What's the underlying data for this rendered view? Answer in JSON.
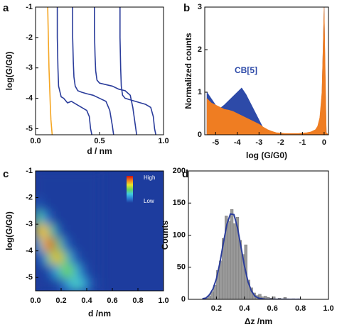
{
  "chart_data": [
    {
      "type": "line",
      "panel_label": "a",
      "xlabel": "d / nm",
      "ylabel": "log(G/G0)",
      "xlim": [
        0,
        1
      ],
      "ylim": [
        -5.2,
        -1
      ],
      "xticks": [
        {
          "value": 0,
          "label": "0.0"
        },
        0.5,
        {
          "value": 1,
          "label": "1.0"
        }
      ],
      "yticks": [
        -1,
        -2,
        -3,
        -4,
        -5
      ],
      "series": [
        {
          "color": "#f5a623",
          "x": [
            0.095,
            0.1,
            0.105,
            0.11,
            0.115,
            0.12,
            0.13
          ],
          "values": [
            -1,
            -2,
            -3,
            -3.6,
            -4.2,
            -4.7,
            -5.2
          ]
        },
        {
          "color": "#2b3d9b",
          "x": [
            0.17,
            0.17,
            0.175,
            0.18,
            0.2,
            0.22,
            0.25,
            0.28,
            0.32,
            0.36,
            0.4,
            0.42,
            0.43,
            0.44
          ],
          "values": [
            -1,
            -2,
            -3,
            -3.6,
            -3.95,
            -4.0,
            -4.15,
            -4.1,
            -4.2,
            -4.3,
            -4.4,
            -4.6,
            -5.0,
            -5.2
          ]
        },
        {
          "color": "#2b3d9b",
          "x": [
            0.29,
            0.29,
            0.295,
            0.3,
            0.31,
            0.33,
            0.36,
            0.4,
            0.45,
            0.5,
            0.55,
            0.58,
            0.6,
            0.61
          ],
          "values": [
            -1,
            -2,
            -2.8,
            -3.3,
            -3.6,
            -3.75,
            -3.8,
            -3.85,
            -3.9,
            -4.0,
            -4.1,
            -4.4,
            -4.9,
            -5.2
          ]
        },
        {
          "color": "#2b3d9b",
          "x": [
            0.46,
            0.46,
            0.465,
            0.47,
            0.48,
            0.5,
            0.55,
            0.6,
            0.65,
            0.7,
            0.74,
            0.76,
            0.78,
            0.79
          ],
          "values": [
            -1,
            -1.8,
            -2.6,
            -3.1,
            -3.4,
            -3.5,
            -3.55,
            -3.6,
            -3.7,
            -3.75,
            -3.9,
            -4.3,
            -4.9,
            -5.2
          ]
        },
        {
          "color": "#2b3d9b",
          "x": [
            0.66,
            0.66,
            0.665,
            0.67,
            0.68,
            0.7,
            0.74,
            0.78,
            0.82,
            0.86,
            0.9,
            0.92,
            0.93,
            0.94
          ],
          "values": [
            -1,
            -2,
            -3,
            -3.6,
            -3.9,
            -4.0,
            -4.05,
            -4.1,
            -4.15,
            -4.2,
            -4.3,
            -4.6,
            -5.0,
            -5.2
          ]
        }
      ]
    },
    {
      "type": "area",
      "panel_label": "b",
      "xlabel": "log (G/G0)",
      "ylabel": "Normalized counts",
      "annotation": "CB[5]",
      "xlim": [
        -5.5,
        0.2
      ],
      "ylim": [
        0,
        3
      ],
      "xticks": [
        -5,
        -4,
        -3,
        -2,
        -1,
        0
      ],
      "yticks": [
        0,
        1,
        2,
        3
      ],
      "x": [
        -5.4,
        -5.2,
        -5.0,
        -4.8,
        -4.6,
        -4.4,
        -4.2,
        -4.0,
        -3.8,
        -3.6,
        -3.4,
        -3.2,
        -3.0,
        -2.8,
        -2.6,
        -2.4,
        -2.2,
        -2.0,
        -1.8,
        -1.6,
        -1.4,
        -1.2,
        -1.0,
        -0.8,
        -0.6,
        -0.4,
        -0.3,
        -0.2,
        -0.1,
        0,
        0.05,
        0.1,
        0.2
      ],
      "series": [
        {
          "color": "#2d4aa8",
          "values": [
            1.0,
            0.85,
            0.7,
            0.62,
            0.7,
            0.8,
            0.9,
            1.0,
            1.1,
            0.95,
            0.75,
            0.55,
            0.35,
            0.15,
            0.06,
            0.03,
            0.02,
            0.02,
            0.02,
            0.02,
            0.02,
            0.02,
            0.03,
            0.04,
            0.06,
            0.1,
            0.18,
            0.35,
            0.9,
            3,
            1.2,
            0.03,
            0
          ]
        },
        {
          "color": "#ef7d22",
          "values": [
            0.85,
            0.75,
            0.7,
            0.65,
            0.6,
            0.58,
            0.55,
            0.5,
            0.45,
            0.4,
            0.35,
            0.3,
            0.25,
            0.18,
            0.12,
            0.08,
            0.05,
            0.04,
            0.03,
            0.03,
            0.03,
            0.03,
            0.04,
            0.05,
            0.07,
            0.12,
            0.2,
            0.4,
            1.0,
            3,
            1.5,
            0.05,
            0
          ]
        }
      ]
    },
    {
      "type": "heatmap",
      "panel_label": "c",
      "xlabel": "d /nm",
      "ylabel": "log(G/G0)",
      "xlim": [
        0,
        1
      ],
      "ylim": [
        -5.5,
        -1
      ],
      "xticks": [
        {
          "value": 0,
          "label": "0.0"
        },
        0.2,
        0.4,
        0.6,
        0.8,
        {
          "value": 1,
          "label": "1.0"
        }
      ],
      "yticks": [
        -1,
        -2,
        -3,
        -4,
        -5
      ],
      "xbins": [
        0,
        0.05,
        0.1,
        0.15,
        0.2,
        0.25,
        0.3,
        0.35,
        0.4,
        0.45,
        0.5
      ],
      "ybins": [
        -5.5,
        -5,
        -4.5,
        -4,
        -3.5,
        -3,
        -2.5,
        -2,
        -1.5,
        -1
      ],
      "z": [
        [
          0,
          0,
          0,
          0.03,
          0.11,
          0.28,
          0.38,
          0.27,
          0.07,
          0.02
        ],
        [
          0,
          0.01,
          0.09,
          0.28,
          0.48,
          0.5,
          0.28,
          0.08,
          0.01,
          0
        ],
        [
          0.03,
          0.18,
          0.58,
          0.77,
          0.53,
          0.22,
          0.05,
          0.01,
          0,
          0
        ],
        [
          0.27,
          0.75,
          0.99,
          0.52,
          0.15,
          0.03,
          0,
          0,
          0,
          0
        ],
        [
          0.69,
          0.77,
          0.42,
          0.09,
          0.01,
          0,
          0,
          0,
          0,
          0
        ],
        [
          0.44,
          0.2,
          0.04,
          0,
          0,
          0,
          0,
          0,
          0,
          0
        ],
        [
          0.07,
          0.01,
          0,
          0,
          0,
          0,
          0,
          0,
          0,
          0
        ],
        [
          0,
          0,
          0,
          0,
          0,
          0,
          0,
          0,
          0,
          0
        ],
        [
          0,
          0,
          0,
          0,
          0,
          0,
          0,
          0,
          0,
          0
        ]
      ],
      "colormap": [
        "#1d3c9e",
        "#2a7fd4",
        "#3fcde0",
        "#6ad35a",
        "#e8e62a",
        "#f08020",
        "#d01010"
      ],
      "colorbar_labels": [
        "High",
        "Low"
      ]
    },
    {
      "type": "histogram",
      "panel_label": "d",
      "xlabel": "Δz /nm",
      "ylabel": "Counts",
      "xlim": [
        0,
        1
      ],
      "ylim": [
        0,
        200
      ],
      "xticks": [
        0.2,
        0.4,
        0.6,
        0.8,
        {
          "value": 1,
          "label": "1.0"
        }
      ],
      "yticks": [
        0,
        50,
        100,
        150,
        200
      ],
      "color": "#9a9a9a",
      "bins": [
        0.1,
        0.12,
        0.14,
        0.16,
        0.18,
        0.2,
        0.22,
        0.24,
        0.26,
        0.28,
        0.3,
        0.32,
        0.34,
        0.36,
        0.38,
        0.4,
        0.42,
        0.44,
        0.46,
        0.48,
        0.5,
        0.52,
        0.54,
        0.56,
        0.58,
        0.6,
        0.62,
        0.64,
        0.66,
        0.68,
        0.7,
        0.72,
        0.74,
        0.76,
        0.78,
        0.8
      ],
      "values": [
        1,
        2,
        5,
        12,
        22,
        45,
        60,
        95,
        130,
        122,
        140,
        118,
        128,
        92,
        70,
        85,
        30,
        18,
        10,
        6,
        8,
        4,
        5,
        3,
        2,
        4,
        1,
        2,
        1,
        3,
        1,
        0,
        1,
        0,
        1
      ],
      "fit": {
        "color": "#2b3d9b",
        "x": [
          0.1,
          0.125,
          0.15,
          0.175,
          0.2,
          0.225,
          0.25,
          0.275,
          0.3,
          0.325,
          0.35,
          0.375,
          0.4,
          0.425,
          0.45,
          0.475,
          0.5,
          0.525,
          0.55,
          0.6,
          0.7,
          0.8
        ],
        "values": [
          1,
          2,
          7,
          16,
          32,
          57,
          88,
          117,
          133,
          132,
          112,
          82,
          52,
          28,
          13,
          5,
          2,
          1,
          0,
          0,
          0,
          0
        ]
      }
    }
  ]
}
